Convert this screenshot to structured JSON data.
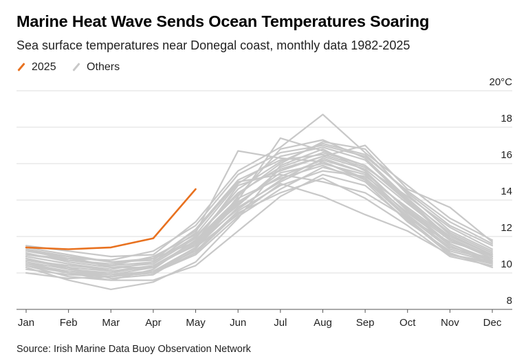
{
  "chart_data": {
    "type": "line",
    "title": "Marine Heat Wave Sends Ocean Temperatures Soaring",
    "subtitle": "Sea surface temperatures near Donegal coast, monthly data 1982-2025",
    "source": "Source: Irish Marine Data Buoy Observation Network",
    "unit": "°C",
    "ylim": [
      8,
      20
    ],
    "yticks": [
      8,
      10,
      12,
      14,
      16,
      18,
      20
    ],
    "ytick_labels": [
      "8",
      "10",
      "12",
      "14",
      "16",
      "18",
      "20°C"
    ],
    "grid": "horizontal",
    "legend_position": "top-left",
    "legend": [
      {
        "label": "2025",
        "color": "#e8711f"
      },
      {
        "label": "Others",
        "color": "#c8c8c8"
      }
    ],
    "categories": [
      "Jan",
      "Feb",
      "Mar",
      "Apr",
      "May",
      "Jun",
      "Jul",
      "Aug",
      "Sep",
      "Oct",
      "Nov",
      "Dec"
    ],
    "highlight_series": {
      "name": "2025",
      "color": "#e8711f",
      "values": [
        11.4,
        11.3,
        11.4,
        11.9,
        14.6
      ]
    },
    "other_series_color": "#c8c8c8",
    "other_series": [
      [
        10.0,
        9.7,
        9.8,
        10.0,
        11.4,
        13.6,
        15.0,
        16.1,
        15.1,
        13.0,
        11.1,
        10.3
      ],
      [
        10.6,
        10.0,
        9.6,
        9.6,
        10.4,
        12.3,
        14.2,
        15.4,
        14.8,
        12.9,
        11.0,
        10.5
      ],
      [
        11.3,
        10.9,
        10.3,
        10.3,
        11.6,
        13.5,
        15.1,
        16.3,
        15.5,
        13.5,
        11.8,
        10.9
      ],
      [
        10.8,
        10.2,
        9.9,
        10.0,
        11.0,
        13.1,
        14.6,
        15.8,
        15.2,
        13.3,
        11.6,
        10.7
      ],
      [
        11.0,
        10.7,
        10.5,
        10.8,
        11.7,
        14.8,
        15.6,
        16.4,
        15.7,
        13.8,
        12.0,
        11.0
      ],
      [
        10.4,
        9.8,
        9.6,
        10.2,
        11.8,
        14.1,
        15.2,
        15.9,
        15.0,
        12.8,
        11.2,
        10.6
      ],
      [
        11.2,
        10.8,
        10.4,
        10.9,
        12.1,
        14.9,
        16.4,
        16.9,
        16.2,
        14.0,
        12.2,
        11.1
      ],
      [
        10.9,
        10.5,
        10.1,
        10.4,
        11.5,
        13.8,
        15.5,
        16.0,
        15.4,
        13.2,
        11.4,
        10.8
      ],
      [
        10.2,
        9.9,
        9.8,
        10.1,
        11.2,
        13.4,
        14.8,
        15.6,
        15.3,
        13.6,
        11.9,
        10.9
      ],
      [
        11.4,
        11.0,
        10.6,
        10.7,
        12.4,
        15.1,
        16.2,
        16.5,
        15.8,
        14.2,
        12.5,
        11.3
      ],
      [
        10.7,
        10.4,
        10.2,
        10.6,
        12.0,
        14.4,
        15.8,
        16.6,
        15.9,
        13.9,
        11.8,
        10.8
      ],
      [
        10.5,
        10.1,
        9.9,
        10.3,
        11.6,
        13.9,
        15.3,
        16.2,
        15.5,
        13.5,
        11.6,
        10.6
      ],
      [
        11.1,
        10.6,
        10.3,
        10.5,
        11.9,
        14.6,
        16.1,
        17.1,
        16.5,
        14.4,
        12.6,
        11.5
      ],
      [
        10.8,
        10.3,
        9.7,
        9.9,
        11.3,
        14.2,
        16.8,
        17.3,
        16.3,
        14.1,
        12.1,
        11.0
      ],
      [
        10.3,
        9.6,
        9.1,
        9.5,
        10.6,
        13.0,
        15.9,
        16.8,
        15.6,
        13.4,
        11.5,
        10.5
      ],
      [
        11.0,
        10.8,
        10.7,
        11.2,
        12.6,
        15.4,
        16.6,
        17.0,
        16.4,
        14.5,
        12.8,
        11.6
      ],
      [
        10.6,
        10.2,
        10.0,
        10.4,
        11.7,
        14.0,
        17.4,
        16.7,
        15.9,
        14.0,
        11.9,
        10.9
      ],
      [
        10.9,
        10.5,
        10.2,
        10.6,
        12.2,
        16.7,
        16.3,
        16.1,
        15.2,
        13.1,
        11.3,
        10.7
      ],
      [
        11.5,
        11.2,
        10.9,
        11.0,
        12.8,
        15.6,
        16.9,
        18.7,
        16.6,
        14.8,
        13.0,
        11.8
      ],
      [
        10.4,
        10.0,
        9.8,
        10.0,
        11.1,
        13.3,
        14.4,
        15.2,
        14.1,
        12.6,
        10.9,
        10.4
      ],
      [
        11.2,
        10.9,
        10.6,
        10.8,
        12.3,
        15.0,
        15.4,
        15.0,
        14.4,
        13.0,
        11.7,
        11.0
      ],
      [
        10.7,
        10.3,
        10.1,
        10.3,
        11.8,
        13.7,
        15.7,
        16.4,
        17.0,
        14.6,
        13.6,
        11.7
      ],
      [
        10.5,
        10.0,
        9.9,
        10.1,
        11.4,
        13.2,
        14.9,
        14.2,
        13.2,
        12.3,
        11.0,
        10.6
      ],
      [
        11.3,
        10.7,
        10.4,
        10.6,
        12.0,
        14.3,
        16.0,
        17.2,
        16.8,
        14.3,
        12.3,
        11.2
      ]
    ]
  }
}
